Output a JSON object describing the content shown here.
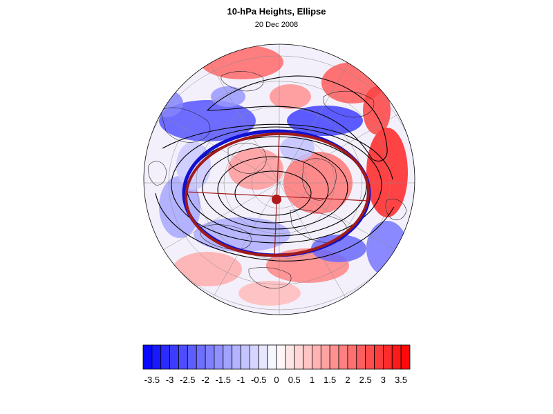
{
  "title": "10-hPa Heights, Ellipse",
  "subtitle": "20 Dec 2008",
  "colorbar": {
    "tick_labels": [
      "-3.5",
      "-3",
      "-2.5",
      "-2",
      "-1.5",
      "-1",
      "-0.5",
      "0",
      "0.5",
      "1",
      "1.5",
      "2",
      "2.5",
      "3",
      "3.5"
    ],
    "min": -3.75,
    "max": 3.75,
    "step": 0.25,
    "negative_color": "#0000ff",
    "positive_color": "#ff0000"
  },
  "colors": {
    "ellipse_observed": "#1010d0",
    "ellipse_fitted": "#a01a1a",
    "center_marker": "#b01a1a",
    "contours": "#000000"
  }
}
